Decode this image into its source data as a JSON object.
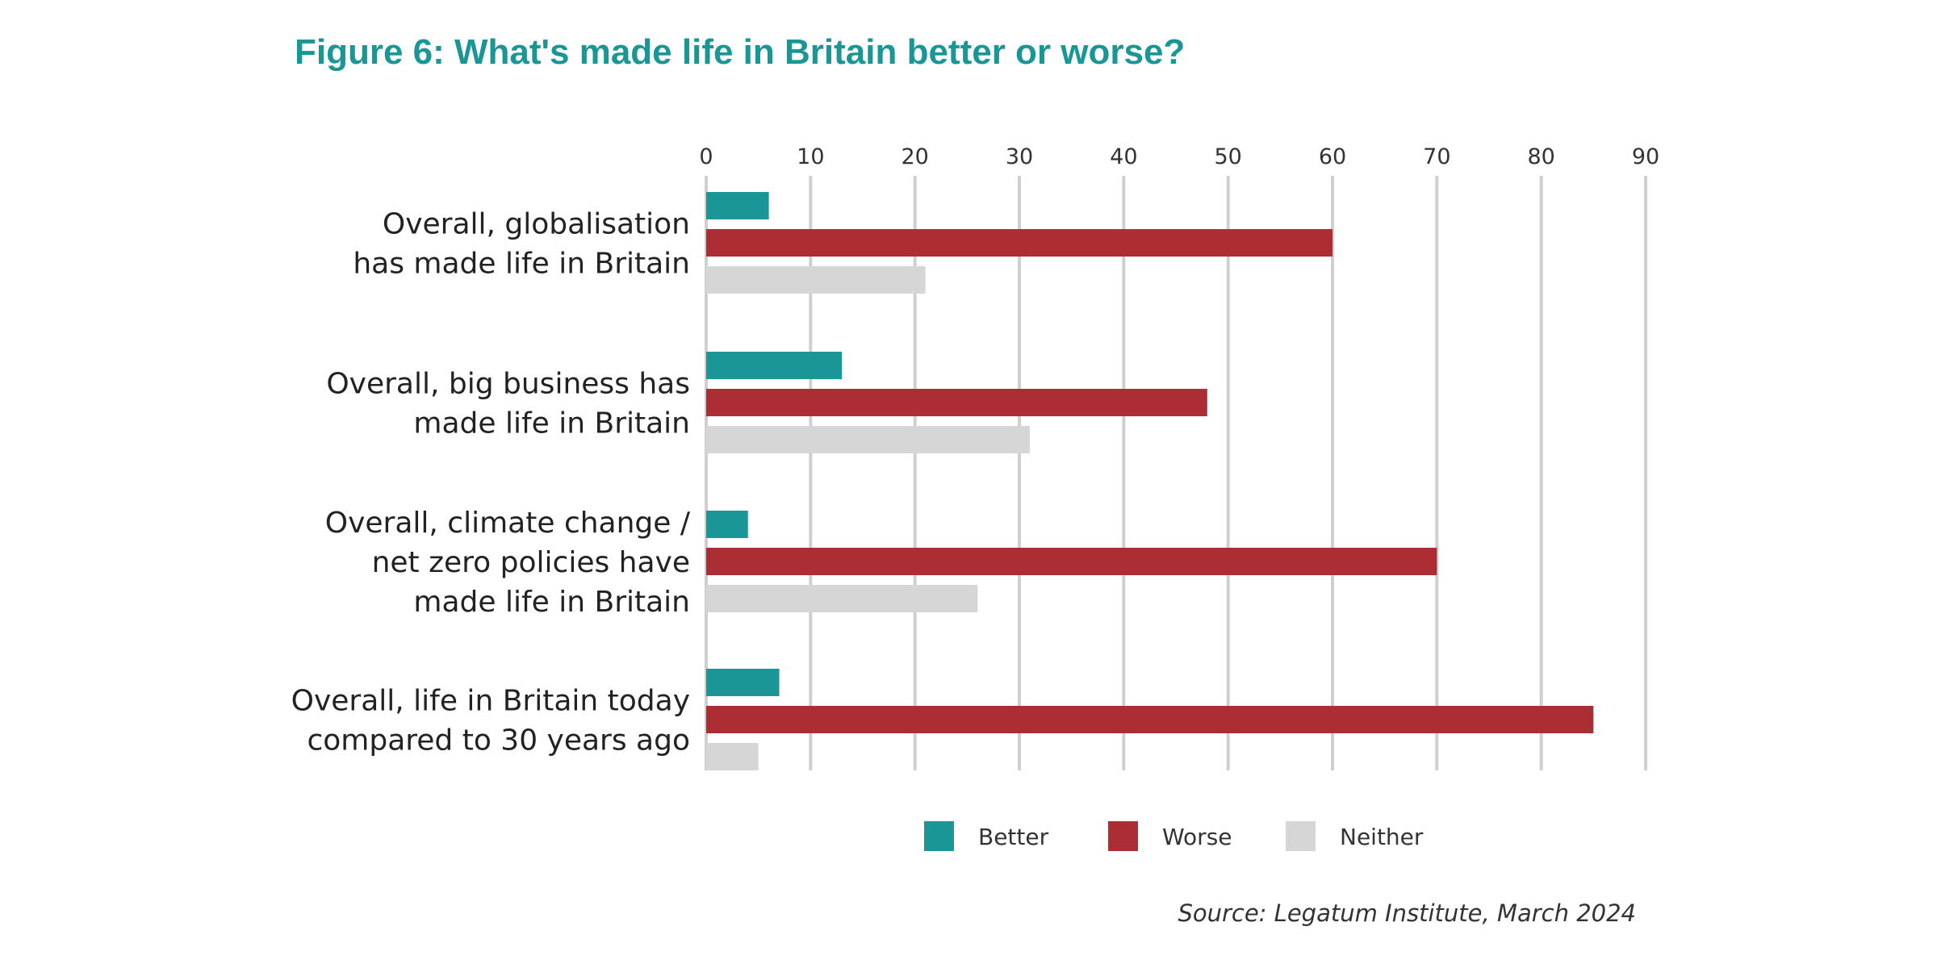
{
  "chart_data": {
    "type": "bar",
    "orientation": "horizontal",
    "title": "Figure 6: What's made life in Britain better or worse?",
    "categories": [
      [
        "Overall, globalisation",
        "has made life in Britain"
      ],
      [
        "Overall, big business has",
        "made life in Britain"
      ],
      [
        "Overall, climate change /",
        "net zero policies have",
        "made life in Britain"
      ],
      [
        "Overall, life in Britain today",
        "compared to 30 years ago"
      ]
    ],
    "series": [
      {
        "name": "Better",
        "color": "#1b9696",
        "values": [
          6,
          13,
          4,
          7
        ]
      },
      {
        "name": "Worse",
        "color": "#ad2d35",
        "values": [
          60,
          48,
          70,
          85
        ]
      },
      {
        "name": "Neither",
        "color": "#d6d6d6",
        "values": [
          21,
          31,
          26,
          5
        ]
      }
    ],
    "xlim": [
      0,
      90
    ],
    "xticks": [
      0,
      10,
      20,
      30,
      40,
      50,
      60,
      70,
      80,
      90
    ],
    "xaxis_position": "top",
    "grid": true,
    "legend_position": "bottom"
  },
  "source": "Source: Legatum Institute, March 2024"
}
